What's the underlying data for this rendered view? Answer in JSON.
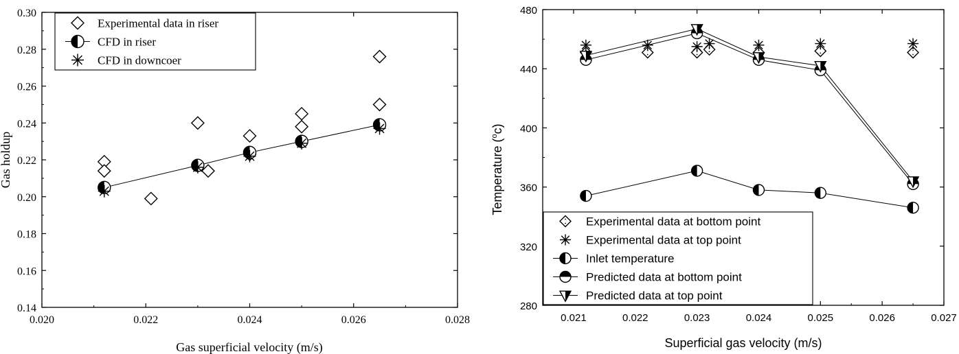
{
  "chart_data": [
    {
      "type": "scatter",
      "xlabel": "Gas superficial velocity (m/s)",
      "ylabel": "Gas holdup",
      "xlim": [
        0.02,
        0.028
      ],
      "ylim": [
        0.14,
        0.3
      ],
      "xticks": [
        "0.020",
        "0.022",
        "0.024",
        "0.026",
        "0.028"
      ],
      "yticks": [
        "0.14",
        "0.16",
        "0.18",
        "0.20",
        "0.22",
        "0.24",
        "0.26",
        "0.28",
        "0.30"
      ],
      "legend_position": "top-left",
      "series": [
        {
          "name": "Experimental data in riser",
          "marker": "diamond",
          "line": false,
          "points": [
            [
              0.0212,
              0.219
            ],
            [
              0.0212,
              0.214
            ],
            [
              0.0221,
              0.199
            ],
            [
              0.023,
              0.24
            ],
            [
              0.0232,
              0.214
            ],
            [
              0.024,
              0.233
            ],
            [
              0.024,
              0.223
            ],
            [
              0.025,
              0.245
            ],
            [
              0.025,
              0.238
            ],
            [
              0.0265,
              0.276
            ],
            [
              0.0265,
              0.25
            ]
          ]
        },
        {
          "name": "CFD in riser",
          "marker": "half-filled-circle",
          "line": true,
          "points": [
            [
              0.0212,
              0.205
            ],
            [
              0.023,
              0.217
            ],
            [
              0.024,
              0.224
            ],
            [
              0.025,
              0.23
            ],
            [
              0.0265,
              0.239
            ]
          ]
        },
        {
          "name": "CFD in downcoer",
          "marker": "asterisk",
          "line": false,
          "points": [
            [
              0.0212,
              0.203
            ],
            [
              0.023,
              0.216
            ],
            [
              0.024,
              0.222
            ],
            [
              0.025,
              0.229
            ],
            [
              0.0265,
              0.237
            ]
          ]
        }
      ]
    },
    {
      "type": "scatter",
      "xlabel": "Superficial gas velocity (m/s)",
      "ylabel_main": "Temperature (",
      "ylabel_sup": "o",
      "ylabel_tail": "c)",
      "xlim": [
        0.0205,
        0.027
      ],
      "ylim": [
        280,
        480
      ],
      "xticks": [
        "0.021",
        "0.022",
        "0.023",
        "0.024",
        "0.025",
        "0.026",
        "0.027"
      ],
      "yticks": [
        "280",
        "320",
        "360",
        "400",
        "440",
        "480"
      ],
      "legend_position": "bottom-left",
      "series": [
        {
          "name": "Experimental data at bottom point",
          "marker": "dotted-diamond",
          "line": false,
          "points": [
            [
              0.0212,
              451
            ],
            [
              0.0222,
              451
            ],
            [
              0.023,
              451
            ],
            [
              0.0232,
              453
            ],
            [
              0.024,
              451
            ],
            [
              0.025,
              452
            ],
            [
              0.0265,
              451
            ]
          ]
        },
        {
          "name": "Experimental data at top point",
          "marker": "asterisk",
          "line": false,
          "points": [
            [
              0.0212,
              456
            ],
            [
              0.0222,
              456
            ],
            [
              0.023,
              455
            ],
            [
              0.0232,
              457
            ],
            [
              0.024,
              456
            ],
            [
              0.025,
              457
            ],
            [
              0.0265,
              457
            ]
          ]
        },
        {
          "name": "Inlet temperature",
          "marker": "half-left-circle",
          "line": true,
          "points": [
            [
              0.0212,
              354
            ],
            [
              0.023,
              371
            ],
            [
              0.024,
              358
            ],
            [
              0.025,
              356
            ],
            [
              0.0265,
              346
            ]
          ]
        },
        {
          "name": "Predicted data at bottom point",
          "marker": "half-top-circle",
          "line": true,
          "points": [
            [
              0.0212,
              446
            ],
            [
              0.023,
              464
            ],
            [
              0.024,
              446
            ],
            [
              0.025,
              439
            ],
            [
              0.0265,
              362
            ]
          ]
        },
        {
          "name": "Predicted data at top point",
          "marker": "half-triangle",
          "line": true,
          "points": [
            [
              0.0212,
              449
            ],
            [
              0.023,
              467
            ],
            [
              0.024,
              448
            ],
            [
              0.025,
              442
            ],
            [
              0.0265,
              364
            ]
          ]
        }
      ]
    }
  ]
}
